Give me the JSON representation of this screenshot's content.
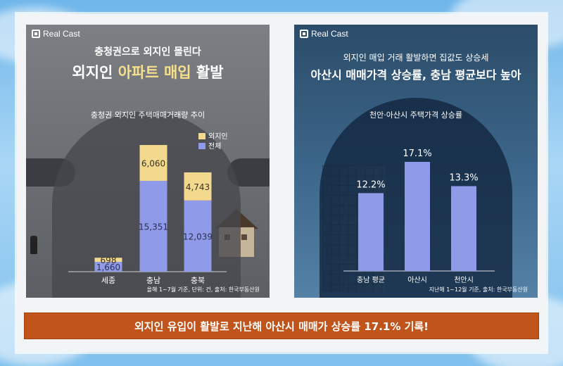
{
  "brand": "Real Cast",
  "left": {
    "subtitle": "충청권으로 외지인 몰린다",
    "headline_pre": "외지인 ",
    "headline_hl": "아파트 매입",
    "headline_post": " 활발",
    "chart_title": "충청권 외지인 주택매매거래량 추이",
    "source": "올해 1~7월 기준, 단위: 건, 출처: 한국부동산원"
  },
  "right": {
    "subtitle": "외지인 매입 거래 활발하면 집값도 상승세",
    "headline": "아산시 매매가격 상승률, 충남 평균보다 높아",
    "chart_title": "천안·아산시 주택가격 상승률",
    "source": "지난해 1~12월 기준, 출처: 한국부동산원"
  },
  "banner": "외지인 유입이 활발로 지난해 아산시 매매가 상승률 17.1% 기록!",
  "colors": {
    "outsider": "#f3d98e",
    "total": "#8f9ae8",
    "banner": "#c0541b"
  },
  "chart_data": [
    {
      "type": "bar",
      "stacked": true,
      "title": "충청권 외지인 주택매매거래량 추이",
      "categories": [
        "세종",
        "충남",
        "충북"
      ],
      "series": [
        {
          "name": "전체",
          "values": [
            1660,
            15351,
            12039
          ],
          "labels": [
            "1,660",
            "15,351",
            "12,039"
          ]
        },
        {
          "name": "외지인",
          "values": [
            698,
            6060,
            4743
          ],
          "labels": [
            "698",
            "6,060",
            "4,743"
          ]
        }
      ],
      "legend": [
        "외지인",
        "전체"
      ],
      "legend_position": "top-right"
    },
    {
      "type": "bar",
      "title": "천안·아산시 주택가격 상승률",
      "categories": [
        "충남 평균",
        "아산시",
        "천안시"
      ],
      "values": [
        12.2,
        17.1,
        13.3
      ],
      "labels": [
        "12.2%",
        "17.1%",
        "13.3%"
      ]
    }
  ]
}
